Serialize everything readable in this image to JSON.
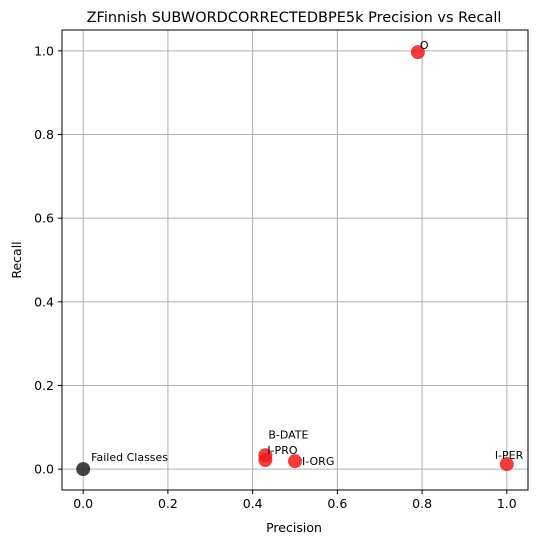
{
  "chart_data": {
    "type": "scatter",
    "title": "ZFinnish SUBWORDCORRECTEDBPE5k Precision vs Recall",
    "xlabel": "Precision",
    "ylabel": "Recall",
    "xlim": [
      -0.05,
      1.05
    ],
    "ylim": [
      -0.05,
      1.05
    ],
    "xticks": [
      "0.0",
      "0.2",
      "0.4",
      "0.6",
      "0.8",
      "1.0"
    ],
    "yticks": [
      "0.0",
      "0.2",
      "0.4",
      "0.6",
      "0.8",
      "1.0"
    ],
    "grid": true,
    "points": [
      {
        "label": "O",
        "x": 0.79,
        "y": 0.997,
        "color": "#ee1b1b"
      },
      {
        "label": "B-DATE",
        "x": 0.43,
        "y": 0.033,
        "color": "#ee1b1b"
      },
      {
        "label": "I-PRO",
        "x": 0.43,
        "y": 0.022,
        "color": "#ee1b1b"
      },
      {
        "label": "I-ORG",
        "x": 0.5,
        "y": 0.019,
        "color": "#ee1b1b"
      },
      {
        "label": "I-PER",
        "x": 1.0,
        "y": 0.012,
        "color": "#ee1b1b"
      },
      {
        "label": "Failed Classes",
        "x": 0.0,
        "y": 0.0,
        "color": "#222222"
      }
    ]
  }
}
